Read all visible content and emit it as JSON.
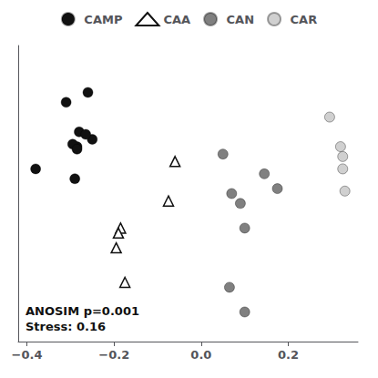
{
  "chart_data": {
    "type": "scatter",
    "annotation": "ANOSIM p=0.001\nStress: 0.16",
    "xlim": [
      -0.42,
      0.36
    ],
    "xticks": [
      {
        "value": -0.4,
        "label": "−0.4"
      },
      {
        "value": -0.2,
        "label": "−0.2"
      },
      {
        "value": 0.0,
        "label": "0.0"
      },
      0.2
    ],
    "ylim": [
      -0.32,
      0.28
    ],
    "tick_labels": "x",
    "grid": false,
    "legend": "top",
    "series": [
      {
        "name": "CAMP",
        "color": "#111111",
        "marker": "circle",
        "x": [
          -0.31,
          -0.26,
          -0.28,
          -0.285,
          -0.25,
          -0.295,
          -0.285,
          -0.29,
          -0.38,
          -0.265
        ],
        "y": [
          0.165,
          0.185,
          0.105,
          0.075,
          0.09,
          0.08,
          0.07,
          0.01,
          0.03,
          0.1
        ]
      },
      {
        "name": "CAA",
        "color": "#111111",
        "marker": "open_triangle",
        "x": [
          -0.185,
          -0.19,
          -0.195,
          -0.175,
          -0.06,
          -0.075
        ],
        "y": [
          -0.09,
          -0.1,
          -0.13,
          -0.2,
          0.045,
          -0.035
        ]
      },
      {
        "name": "CAN",
        "color": "#808080",
        "marker": "circle",
        "x": [
          0.05,
          0.07,
          0.09,
          0.1,
          0.065,
          0.1,
          0.145,
          0.175
        ],
        "y": [
          0.06,
          -0.02,
          -0.04,
          -0.09,
          -0.21,
          -0.26,
          0.02,
          -0.01
        ]
      },
      {
        "name": "CAR",
        "color": "#d0d0d0",
        "marker": "circle",
        "x": [
          0.295,
          0.32,
          0.325,
          0.325,
          0.33
        ],
        "y": [
          0.135,
          0.075,
          0.055,
          0.03,
          -0.015
        ]
      }
    ]
  }
}
